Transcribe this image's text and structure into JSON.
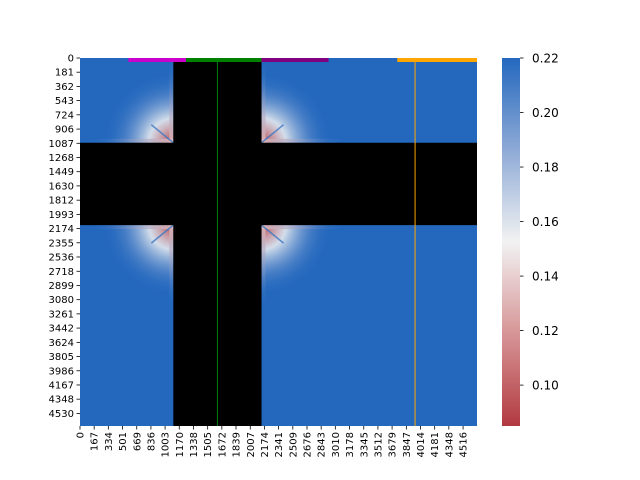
{
  "chart_data": {
    "type": "heatmap",
    "title": "",
    "xlabel": "",
    "ylabel": "",
    "x_ticks": [
      "0",
      "167",
      "334",
      "501",
      "669",
      "836",
      "1003",
      "1170",
      "1338",
      "1505",
      "1672",
      "1839",
      "2007",
      "2174",
      "2341",
      "2509",
      "2676",
      "2843",
      "3010",
      "3178",
      "3345",
      "3512",
      "3679",
      "3847",
      "4014",
      "4181",
      "4348",
      "4516"
    ],
    "y_ticks": [
      "0",
      "181",
      "362",
      "543",
      "724",
      "906",
      "1087",
      "1268",
      "1449",
      "1630",
      "1812",
      "1993",
      "2174",
      "2355",
      "2536",
      "2718",
      "2899",
      "3080",
      "3261",
      "3442",
      "3624",
      "3805",
      "3986",
      "4167",
      "4348",
      "4530"
    ],
    "x_max": 4680,
    "y_max": 4690,
    "colormap": "vlag",
    "value_range": [
      0.085,
      0.22
    ],
    "colorbar_ticks": [
      0.1,
      0.12,
      0.14,
      0.16,
      0.18,
      0.2,
      0.22
    ],
    "colorbar_labels": [
      "0.10",
      "0.12",
      "0.14",
      "0.16",
      "0.18",
      "0.20",
      "0.22"
    ],
    "background_value": 0.22,
    "masked_color": "#000000",
    "masked_regions": [
      {
        "orientation": "vertical",
        "start": 1100,
        "end": 2140
      },
      {
        "orientation": "horizontal",
        "start": 1080,
        "end": 2130
      }
    ],
    "corner_gradients": [
      {
        "corner_x": 1100,
        "corner_y": 1080,
        "quadrant": "upper-left",
        "min_value": 0.09
      },
      {
        "corner_x": 2140,
        "corner_y": 1080,
        "quadrant": "upper-right",
        "min_value": 0.09
      },
      {
        "corner_x": 1100,
        "corner_y": 2130,
        "quadrant": "lower-left",
        "min_value": 0.09
      },
      {
        "corner_x": 2140,
        "corner_y": 2130,
        "quadrant": "lower-right",
        "min_value": 0.09
      }
    ],
    "top_bars": [
      {
        "start": 570,
        "end": 1250,
        "color": "#cc00cc"
      },
      {
        "start": 1250,
        "end": 2140,
        "color": "#008000"
      },
      {
        "start": 2140,
        "end": 2930,
        "color": "#800080"
      },
      {
        "start": 3740,
        "end": 4680,
        "color": "#ffa500"
      }
    ],
    "vertical_lines": [
      {
        "x": 1620,
        "color": "#008000"
      },
      {
        "x": 3950,
        "color": "#ffa500"
      }
    ]
  }
}
